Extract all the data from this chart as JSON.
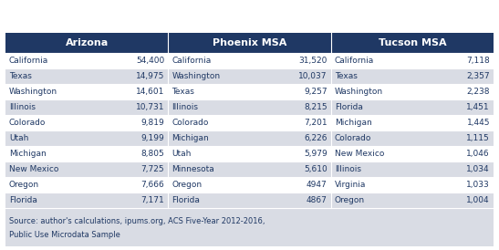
{
  "header_bg": "#1F3864",
  "header_text_color": "#FFFFFF",
  "row_bg_even": "#D9DCE4",
  "row_bg_odd": "#FFFFFF",
  "footer_bg": "#D9DCE4",
  "text_color": "#1F3864",
  "outer_bg": "#FFFFFF",
  "headers": [
    "Arizona",
    "Phoenix MSA",
    "Tucson MSA"
  ],
  "arizona": [
    [
      "California",
      "54,400"
    ],
    [
      "Texas",
      "14,975"
    ],
    [
      "Washington",
      "14,601"
    ],
    [
      "Illinois",
      "10,731"
    ],
    [
      "Colorado",
      "9,819"
    ],
    [
      "Utah",
      "9,199"
    ],
    [
      "Michigan",
      "8,805"
    ],
    [
      "New Mexico",
      "7,725"
    ],
    [
      "Oregon",
      "7,666"
    ],
    [
      "Florida",
      "7,171"
    ]
  ],
  "phoenix": [
    [
      "California",
      "31,520"
    ],
    [
      "Washington",
      "10,037"
    ],
    [
      "Texas",
      "9,257"
    ],
    [
      "Illinois",
      "8,215"
    ],
    [
      "Colorado",
      "7,201"
    ],
    [
      "Michigan",
      "6,226"
    ],
    [
      "Utah",
      "5,979"
    ],
    [
      "Minnesota",
      "5,610"
    ],
    [
      "Oregon",
      "4947"
    ],
    [
      "Florida",
      "4867"
    ]
  ],
  "tucson": [
    [
      "California",
      "7,118"
    ],
    [
      "Texas",
      "2,357"
    ],
    [
      "Washington",
      "2,238"
    ],
    [
      "Florida",
      "1,451"
    ],
    [
      "Michigan",
      "1,445"
    ],
    [
      "Colorado",
      "1,115"
    ],
    [
      "New Mexico",
      "1,046"
    ],
    [
      "Illinois",
      "1,034"
    ],
    [
      "Virginia",
      "1,033"
    ],
    [
      "Oregon",
      "1,004"
    ]
  ],
  "source_line1": "Source: author's calculations, ipums.org, ACS Five-Year 2012-2016,",
  "source_line2": "Public Use Microdata Sample",
  "num_rows": 10
}
